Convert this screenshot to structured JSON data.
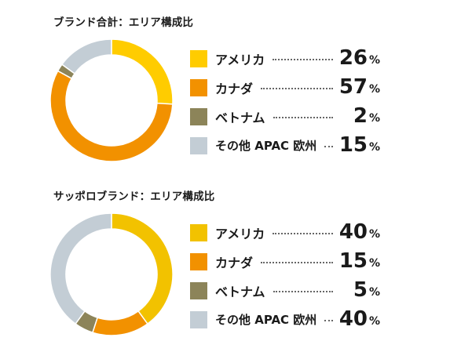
{
  "chart_data": [
    {
      "type": "pie",
      "title": "ブランド合計：エリア構成比",
      "unit": "%",
      "series": [
        {
          "name": "アメリカ",
          "value": 26,
          "color": "#FFCC00"
        },
        {
          "name": "カナダ",
          "value": 57,
          "color": "#F29100"
        },
        {
          "name": "ベトナム",
          "value": 2,
          "color": "#8C8459"
        },
        {
          "name": "その他 APAC 欧州",
          "value": 15,
          "color": "#C3CDD5"
        }
      ]
    },
    {
      "type": "pie",
      "title": "サッポロブランド：エリア構成比",
      "unit": "%",
      "series": [
        {
          "name": "アメリカ",
          "value": 40,
          "color": "#F2C200"
        },
        {
          "name": "カナダ",
          "value": 15,
          "color": "#F29100"
        },
        {
          "name": "ベトナム",
          "value": 5,
          "color": "#8C8459"
        },
        {
          "name": "その他 APAC 欧州",
          "value": 40,
          "color": "#C3CDD5"
        }
      ]
    }
  ]
}
